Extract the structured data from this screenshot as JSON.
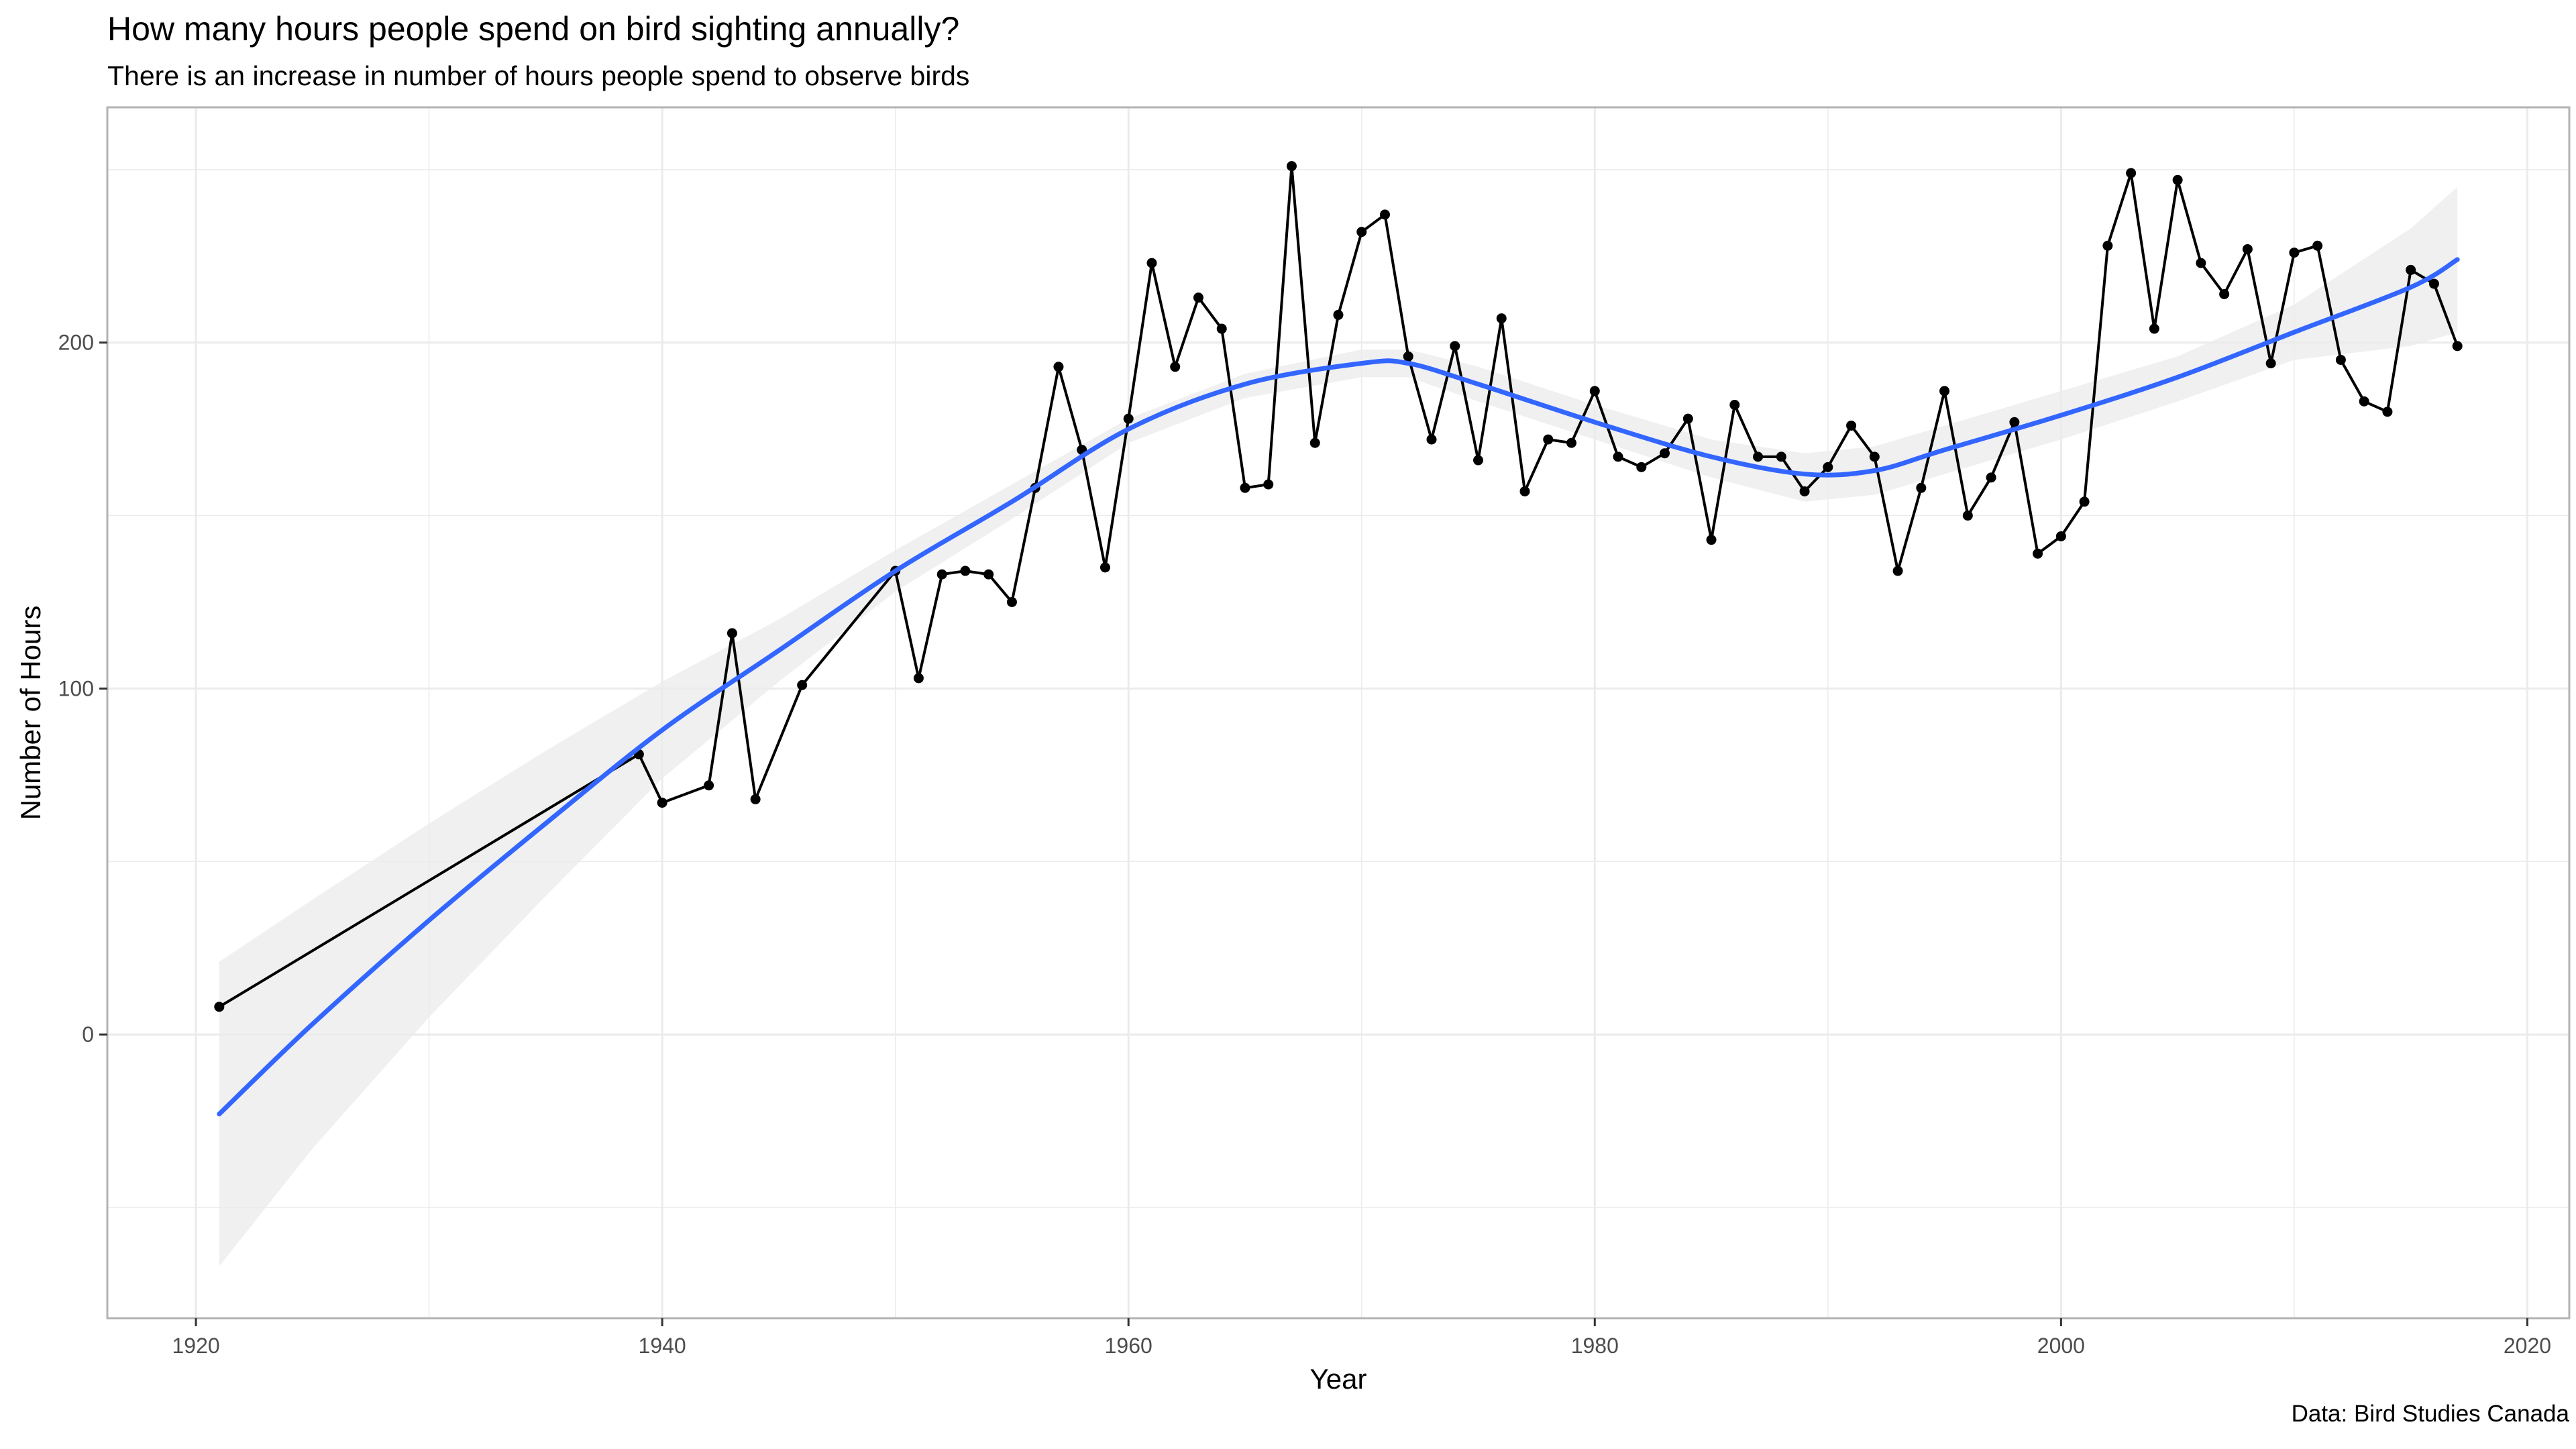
{
  "title": "How many hours people spend on bird sighting annually?",
  "subtitle": "There is an increase in number of hours people spend to observe birds",
  "caption": "Data: Bird Studies Canada",
  "colors": {
    "observed_line": "#000000",
    "smooth_line": "#3366FF",
    "confidence_band": "#EBEBEB",
    "grid": "#EBEBEB",
    "panel_border": "#B3B3B3"
  },
  "chart_data": {
    "type": "line",
    "xlabel": "Year",
    "ylabel": "Number of Hours",
    "xlim": [
      1916.2,
      2021.8
    ],
    "ylim": [
      -82,
      268
    ],
    "x_ticks": [
      1920,
      1940,
      1960,
      1980,
      2000,
      2020
    ],
    "y_ticks": [
      0,
      100,
      200
    ],
    "grid": true,
    "legend": "none",
    "series": [
      {
        "points": [
          [
            1921,
            8
          ],
          [
            1939,
            81
          ],
          [
            1940,
            67
          ],
          [
            1942,
            72
          ],
          [
            1943,
            116
          ],
          [
            1944,
            68
          ],
          [
            1946,
            101
          ],
          [
            1950,
            134
          ],
          [
            1951,
            103
          ],
          [
            1952,
            133
          ],
          [
            1953,
            134
          ],
          [
            1954,
            133
          ],
          [
            1955,
            125
          ],
          [
            1956,
            158
          ],
          [
            1957,
            193
          ],
          [
            1958,
            169
          ],
          [
            1959,
            135
          ],
          [
            1960,
            178
          ],
          [
            1961,
            223
          ],
          [
            1962,
            193
          ],
          [
            1963,
            213
          ],
          [
            1964,
            204
          ],
          [
            1965,
            158
          ],
          [
            1966,
            159
          ],
          [
            1967,
            251
          ],
          [
            1968,
            171
          ],
          [
            1969,
            208
          ],
          [
            1970,
            232
          ],
          [
            1971,
            237
          ],
          [
            1972,
            196
          ],
          [
            1973,
            172
          ],
          [
            1974,
            199
          ],
          [
            1975,
            166
          ],
          [
            1976,
            207
          ],
          [
            1977,
            157
          ],
          [
            1978,
            172
          ],
          [
            1979,
            171
          ],
          [
            1980,
            186
          ],
          [
            1981,
            167
          ],
          [
            1982,
            164
          ],
          [
            1983,
            168
          ],
          [
            1984,
            178
          ],
          [
            1985,
            143
          ],
          [
            1986,
            182
          ],
          [
            1987,
            167
          ],
          [
            1988,
            167
          ],
          [
            1989,
            157
          ],
          [
            1990,
            164
          ],
          [
            1991,
            176
          ],
          [
            1992,
            167
          ],
          [
            1993,
            134
          ],
          [
            1994,
            158
          ],
          [
            1995,
            186
          ],
          [
            1996,
            150
          ],
          [
            1997,
            161
          ],
          [
            1998,
            177
          ],
          [
            1999,
            139
          ],
          [
            2000,
            144
          ],
          [
            2001,
            154
          ],
          [
            2002,
            228
          ],
          [
            2003,
            249
          ],
          [
            2004,
            204
          ],
          [
            2005,
            247
          ],
          [
            2006,
            223
          ],
          [
            2007,
            214
          ],
          [
            2008,
            227
          ],
          [
            2009,
            194
          ],
          [
            2010,
            226
          ],
          [
            2011,
            228
          ],
          [
            2012,
            195
          ],
          [
            2013,
            183
          ],
          [
            2014,
            180
          ],
          [
            2015,
            221
          ],
          [
            2016,
            217
          ],
          [
            2017,
            199
          ]
        ]
      },
      {
        "style": "smooth",
        "points": [
          [
            1921,
            -23
          ],
          [
            1925,
            3
          ],
          [
            1930,
            33
          ],
          [
            1935,
            61
          ],
          [
            1940,
            88
          ],
          [
            1945,
            111
          ],
          [
            1950,
            134
          ],
          [
            1955,
            154
          ],
          [
            1960,
            175
          ],
          [
            1965,
            188
          ],
          [
            1970,
            194
          ],
          [
            1972,
            194
          ],
          [
            1975,
            188
          ],
          [
            1980,
            177
          ],
          [
            1985,
            167
          ],
          [
            1989,
            162
          ],
          [
            1992,
            163
          ],
          [
            1995,
            169
          ],
          [
            2000,
            179
          ],
          [
            2005,
            190
          ],
          [
            2010,
            203
          ],
          [
            2015,
            216
          ],
          [
            2017,
            224
          ]
        ]
      }
    ],
    "confidence_band": {
      "x": [
        1921,
        1925,
        1930,
        1935,
        1940,
        1945,
        1950,
        1955,
        1960,
        1965,
        1970,
        1972,
        1975,
        1980,
        1985,
        1989,
        1992,
        1995,
        2000,
        2005,
        2010,
        2015,
        2017
      ],
      "upper": [
        21,
        39,
        61,
        82,
        102,
        120,
        140,
        159,
        178,
        191,
        198,
        198,
        193,
        182,
        172,
        168,
        170,
        176,
        186,
        196,
        211,
        233,
        245
      ],
      "lower": [
        -67,
        -33,
        5,
        40,
        74,
        102,
        128,
        149,
        171,
        184,
        190,
        190,
        183,
        172,
        161,
        154,
        156,
        162,
        172,
        183,
        195,
        199,
        203
      ]
    }
  }
}
